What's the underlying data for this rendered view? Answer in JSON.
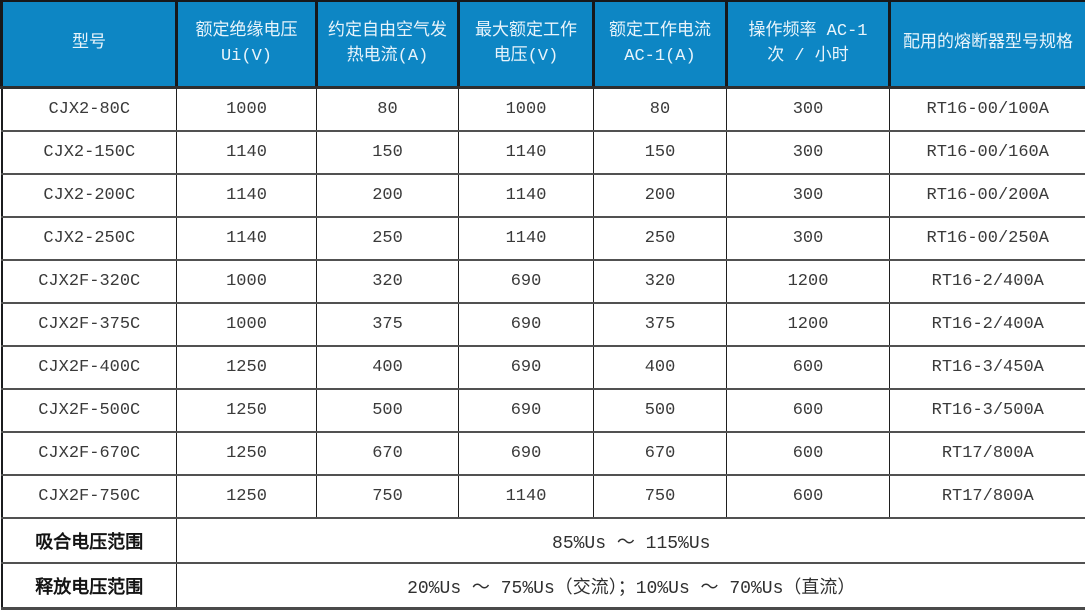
{
  "colors": {
    "header_bg": "#0d86c4",
    "header_text": "#e8f4fb",
    "body_text": "#3a3a3a",
    "grid_line_dark": "#1f1f1f",
    "grid_line_row": "#515151"
  },
  "table": {
    "columns": [
      "型号",
      "额定绝缘电压 Ui(V)",
      "约定自由空气发热电流(A)",
      "最大额定工作电压(V)",
      "额定工作电流 AC-1(A)",
      "操作频率 AC-1 次 / 小时",
      "配用的熔断器型号规格"
    ],
    "rows": [
      [
        "CJX2-80C",
        "1000",
        "80",
        "1000",
        "80",
        "300",
        "RT16-00/100A"
      ],
      [
        "CJX2-150C",
        "1140",
        "150",
        "1140",
        "150",
        "300",
        "RT16-00/160A"
      ],
      [
        "CJX2-200C",
        "1140",
        "200",
        "1140",
        "200",
        "300",
        "RT16-00/200A"
      ],
      [
        "CJX2-250C",
        "1140",
        "250",
        "1140",
        "250",
        "300",
        "RT16-00/250A"
      ],
      [
        "CJX2F-320C",
        "1000",
        "320",
        "690",
        "320",
        "1200",
        "RT16-2/400A"
      ],
      [
        "CJX2F-375C",
        "1000",
        "375",
        "690",
        "375",
        "1200",
        "RT16-2/400A"
      ],
      [
        "CJX2F-400C",
        "1250",
        "400",
        "690",
        "400",
        "600",
        "RT16-3/450A"
      ],
      [
        "CJX2F-500C",
        "1250",
        "500",
        "690",
        "500",
        "600",
        "RT16-3/500A"
      ],
      [
        "CJX2F-670C",
        "1250",
        "670",
        "690",
        "670",
        "600",
        "RT17/800A"
      ],
      [
        "CJX2F-750C",
        "1250",
        "750",
        "1140",
        "750",
        "600",
        "RT17/800A"
      ]
    ],
    "footer_rows": [
      {
        "label": "吸合电压范围",
        "value": "85%Us ～ 115%Us"
      },
      {
        "label": "释放电压范围",
        "value": "20%Us ～ 75%Us（交流）；10%Us ～ 70%Us（直流）"
      }
    ]
  }
}
